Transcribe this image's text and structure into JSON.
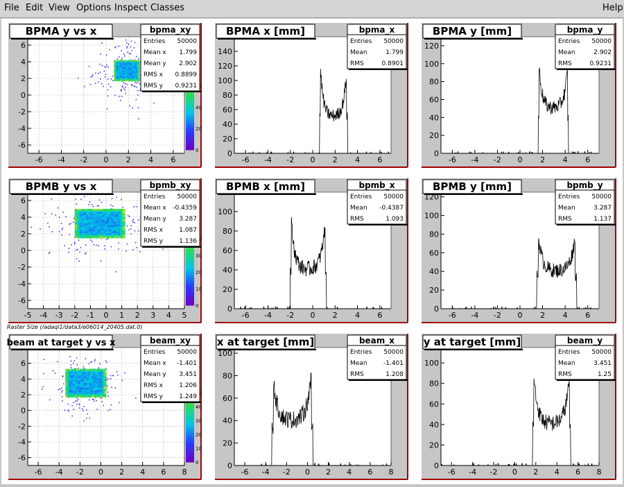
{
  "menu": {
    "items": [
      "File",
      "Edit",
      "View",
      "Options",
      "Inspect",
      "Classes"
    ],
    "help": "Help"
  },
  "footer_label": "Raster Size (/adaql1/data3/e06014_20405.dat.0)",
  "colors": {
    "frame_bg": "#c6c6c6",
    "plot_bg": "#ffffff",
    "axis": "#000000",
    "frame_right": "#a00000",
    "hist_line": "#000000"
  },
  "chart_data": [
    {
      "type": "heatmap",
      "name": "bpma_xy",
      "title": "BPMA y vs x",
      "xlim": [
        -7,
        7
      ],
      "ylim": [
        -7,
        7
      ],
      "xticks": [
        -6,
        -4,
        -2,
        0,
        2,
        4,
        6
      ],
      "yticks": [
        -6,
        -4,
        -2,
        0,
        2,
        4,
        6
      ],
      "region": {
        "x0": 0.7,
        "x1": 3.0,
        "y0": 1.7,
        "y1": 4.2
      },
      "zticks": [
        0,
        20,
        40,
        60
      ],
      "zmax": 70,
      "show_zticks": [
        0,
        20,
        40,
        60
      ],
      "stats": [
        [
          "Entries",
          "50000"
        ],
        [
          "Mean x",
          "1.799"
        ],
        [
          "Mean y",
          "2.902"
        ],
        [
          "RMS x",
          "0.8899"
        ],
        [
          "RMS y",
          "0.9231"
        ]
      ]
    },
    {
      "type": "line",
      "name": "bpma_x",
      "title": "BPMA x [mm]",
      "xlim": [
        -7,
        7
      ],
      "ylim": [
        0,
        160
      ],
      "xticks": [
        -6,
        -4,
        -2,
        0,
        2,
        4,
        6
      ],
      "yticks": [
        0,
        20,
        40,
        60,
        80,
        100,
        120,
        140,
        160
      ],
      "hist": {
        "lo": 0.6,
        "hi": 3.1,
        "edge_l": 150,
        "edge_r": 132,
        "mid": 50,
        "noise": 9
      },
      "stats": [
        [
          "Entries",
          "50000"
        ],
        [
          "Mean",
          "1.799"
        ],
        [
          "RMS",
          "0.8901"
        ]
      ]
    },
    {
      "type": "line",
      "name": "bpma_y",
      "title": "BPMA y [mm]",
      "xlim": [
        -7,
        7
      ],
      "ylim": [
        0,
        130
      ],
      "xticks": [
        -6,
        -4,
        -2,
        0,
        2,
        4,
        6
      ],
      "yticks": [
        0,
        20,
        40,
        60,
        80,
        100,
        120
      ],
      "hist": {
        "lo": 1.6,
        "hi": 4.3,
        "edge_l": 115,
        "edge_r": 108,
        "mid": 50,
        "noise": 8
      },
      "stats": [
        [
          "Entries",
          "50000"
        ],
        [
          "Mean",
          "2.902"
        ],
        [
          "RMS",
          "0.9231"
        ]
      ]
    },
    {
      "type": "heatmap",
      "name": "bpmb_xy",
      "title": "BPMB y vs x",
      "xlim": [
        -5,
        5
      ],
      "ylim": [
        -7,
        7
      ],
      "xticks": [
        -5,
        -4,
        -3,
        -2,
        -1,
        0,
        1,
        2,
        3,
        4,
        5
      ],
      "yticks": [
        -6,
        -4,
        -2,
        0,
        2,
        4,
        6
      ],
      "region": {
        "x0": -2.0,
        "x1": 1.2,
        "y0": 1.5,
        "y1": 5.0
      },
      "zticks": [
        0,
        10,
        20,
        30,
        40
      ],
      "zmax": 45,
      "show_zticks": [
        0,
        10,
        20,
        30,
        40
      ],
      "stats": [
        [
          "Entries",
          "50000"
        ],
        [
          "Mean x",
          "-0.4359"
        ],
        [
          "Mean y",
          "3.287"
        ],
        [
          "RMS x",
          "1.087"
        ],
        [
          "RMS y",
          "1.136"
        ]
      ]
    },
    {
      "type": "line",
      "name": "bpmb_x",
      "title": "BPMB x [mm]",
      "xlim": [
        -7,
        7
      ],
      "ylim": [
        0,
        120
      ],
      "xticks": [
        -6,
        -4,
        -2,
        0,
        2,
        4,
        6
      ],
      "yticks": [
        0,
        20,
        40,
        60,
        80,
        100,
        120
      ],
      "hist": {
        "lo": -2.0,
        "hi": 1.2,
        "edge_l": 105,
        "edge_r": 100,
        "mid": 40,
        "noise": 8
      },
      "stats": [
        [
          "Entries",
          "50000"
        ],
        [
          "Mean",
          "-0.4387"
        ],
        [
          "RMS",
          "1.093"
        ]
      ]
    },
    {
      "type": "line",
      "name": "bpmb_y",
      "title": "BPMB y [mm]",
      "xlim": [
        -7,
        7
      ],
      "ylim": [
        0,
        125
      ],
      "xticks": [
        -6,
        -4,
        -2,
        0,
        2,
        4,
        6
      ],
      "yticks": [
        0,
        20,
        40,
        60,
        80,
        100,
        120
      ],
      "hist": {
        "lo": 1.5,
        "hi": 5.0,
        "edge_l": 95,
        "edge_r": 90,
        "mid": 40,
        "noise": 8
      },
      "stats": [
        [
          "Entries",
          "50000"
        ],
        [
          "Mean",
          "3.287"
        ],
        [
          "RMS",
          "1.137"
        ]
      ]
    },
    {
      "type": "heatmap",
      "name": "beam_xy",
      "title": "beam at target y vs x",
      "xlim": [
        -7,
        8
      ],
      "ylim": [
        -7,
        8
      ],
      "xticks": [
        -6,
        -4,
        -2,
        0,
        2,
        4,
        6,
        8
      ],
      "yticks": [
        -6,
        -4,
        -2,
        0,
        2,
        4,
        6
      ],
      "region": {
        "x0": -3.4,
        "x1": 0.5,
        "y0": 1.7,
        "y1": 5.3
      },
      "zticks": [
        0,
        10,
        20,
        30,
        40,
        50
      ],
      "zmax": 55,
      "show_zticks": [
        0,
        10,
        20,
        30,
        40,
        50
      ],
      "stats": [
        [
          "Entries",
          "50000"
        ],
        [
          "Mean x",
          "-1.401"
        ],
        [
          "Mean y",
          "3.451"
        ],
        [
          "RMS x",
          "1.206"
        ],
        [
          "RMS y",
          "1.249"
        ]
      ]
    },
    {
      "type": "line",
      "name": "beam_x",
      "title": "x at target [mm]",
      "xlim": [
        -7,
        8
      ],
      "ylim": [
        0,
        105
      ],
      "xticks": [
        -6,
        -4,
        -2,
        0,
        2,
        4,
        6,
        8
      ],
      "yticks": [
        0,
        20,
        40,
        60,
        80,
        100
      ],
      "hist": {
        "lo": -3.4,
        "hi": 0.5,
        "edge_l": 90,
        "edge_r": 92,
        "mid": 40,
        "noise": 8
      },
      "stats": [
        [
          "Entries",
          "50000"
        ],
        [
          "Mean",
          "-1.401"
        ],
        [
          "RMS",
          "1.208"
        ]
      ]
    },
    {
      "type": "line",
      "name": "beam_y",
      "title": "y at target [mm]",
      "xlim": [
        -7,
        8
      ],
      "ylim": [
        0,
        115
      ],
      "xticks": [
        -6,
        -4,
        -2,
        0,
        2,
        4,
        6,
        8
      ],
      "yticks": [
        0,
        20,
        40,
        60,
        80,
        100
      ],
      "hist": {
        "lo": 1.7,
        "hi": 5.3,
        "edge_l": 105,
        "edge_r": 100,
        "mid": 40,
        "noise": 8
      },
      "stats": [
        [
          "Entries",
          "50000"
        ],
        [
          "Mean",
          "3.451"
        ],
        [
          "RMS",
          "1.25"
        ]
      ]
    }
  ]
}
